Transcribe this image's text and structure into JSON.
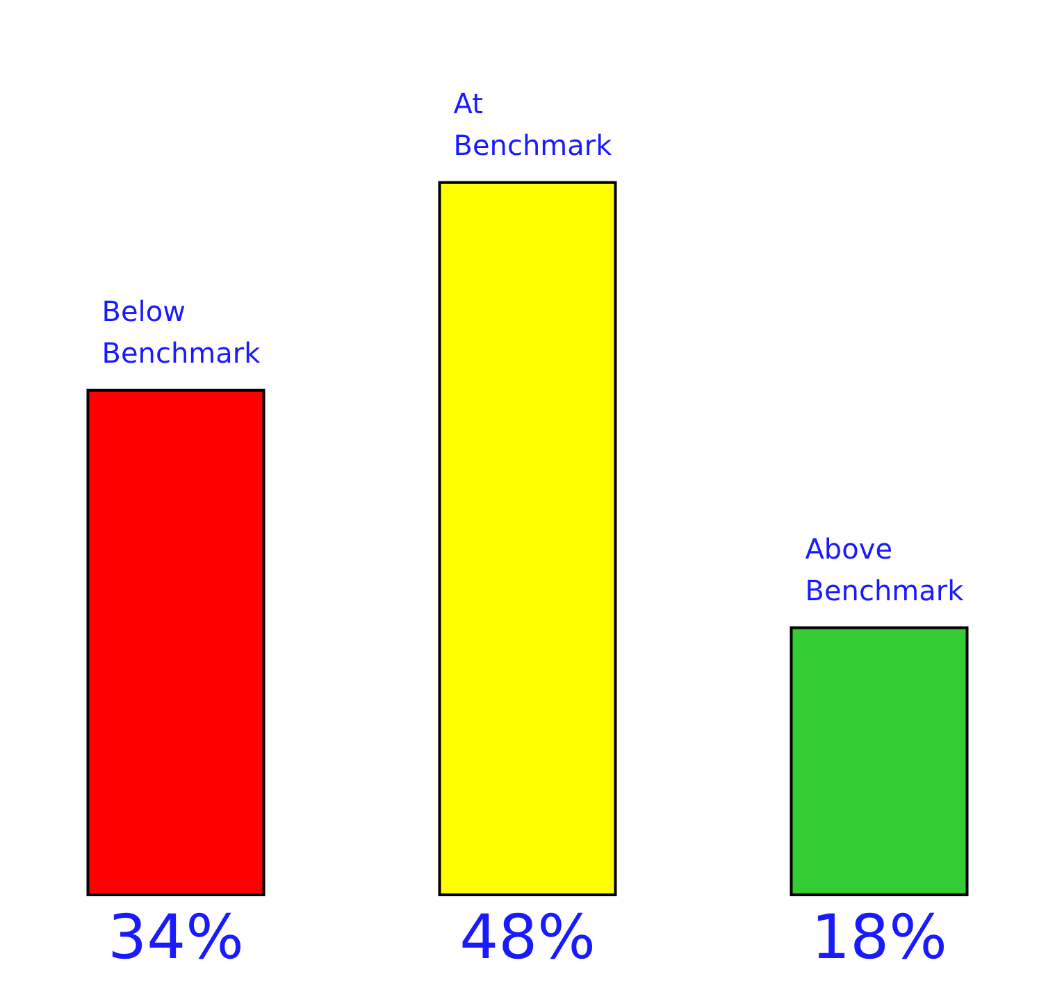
{
  "chart_data": {
    "type": "bar",
    "categories": [
      "Below Benchmark",
      "At Benchmark",
      "Above Benchmark"
    ],
    "values": [
      34,
      48,
      18
    ],
    "value_labels": [
      "34%",
      "48%",
      "18%"
    ],
    "colors": [
      "#ff0000",
      "#ffff00",
      "#33cc33"
    ]
  }
}
